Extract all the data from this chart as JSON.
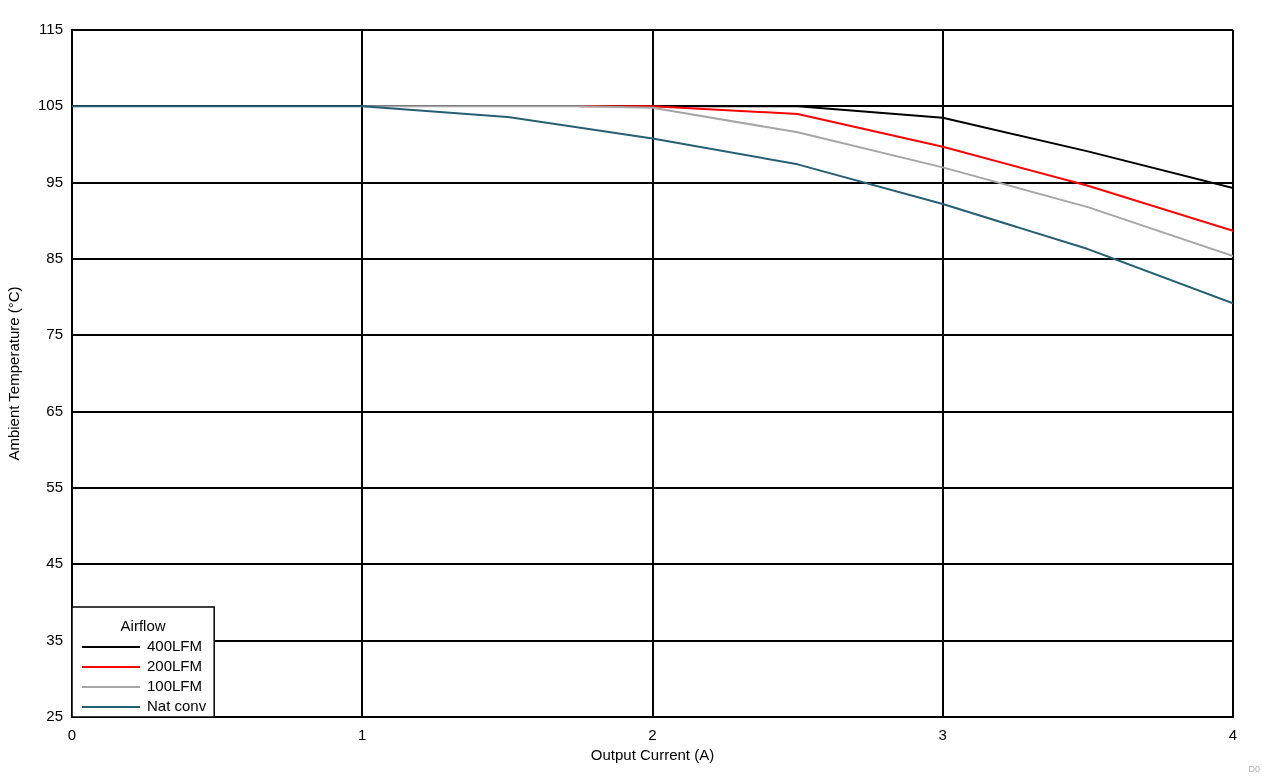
{
  "chart_data": {
    "type": "line",
    "xlabel": "Output Current (A)",
    "ylabel": "Ambient Temperature (°C)",
    "legend_title": "Airflow",
    "xlim": [
      0,
      4
    ],
    "xticks": [
      0,
      1,
      2,
      3,
      4
    ],
    "ylim": [
      25,
      115
    ],
    "yticks": [
      25,
      35,
      45,
      55,
      65,
      75,
      85,
      95,
      105,
      115
    ],
    "series": [
      {
        "name": "400LFM",
        "color": "#000000",
        "x": [
          2,
          2.5,
          3,
          3.5,
          4
        ],
        "values": [
          105,
          105,
          103.5,
          99.1,
          94.3
        ]
      },
      {
        "name": "200LFM",
        "color": "#ff0000",
        "x": [
          1.75,
          2,
          2.5,
          3,
          3.5,
          4
        ],
        "values": [
          105,
          105,
          104,
          99.7,
          94.6,
          88.7
        ]
      },
      {
        "name": "100LFM",
        "color": "#a6a6a6",
        "x": [
          1,
          1.5,
          1.75,
          2,
          2.5,
          3,
          3.5,
          4
        ],
        "values": [
          105,
          105,
          105,
          104.8,
          101.6,
          97,
          91.8,
          85.4
        ]
      },
      {
        "name": "Nat conv",
        "color": "#255e75",
        "x": [
          0,
          1,
          1.5,
          2,
          2.5,
          3,
          3.5,
          4
        ],
        "values": [
          105,
          105,
          103.6,
          100.8,
          97.4,
          92.2,
          86.3,
          79.2
        ]
      }
    ],
    "grid": true,
    "legend": "bottom left",
    "marker": "none",
    "line_style": "solid",
    "annotations": [
      "D0"
    ]
  }
}
